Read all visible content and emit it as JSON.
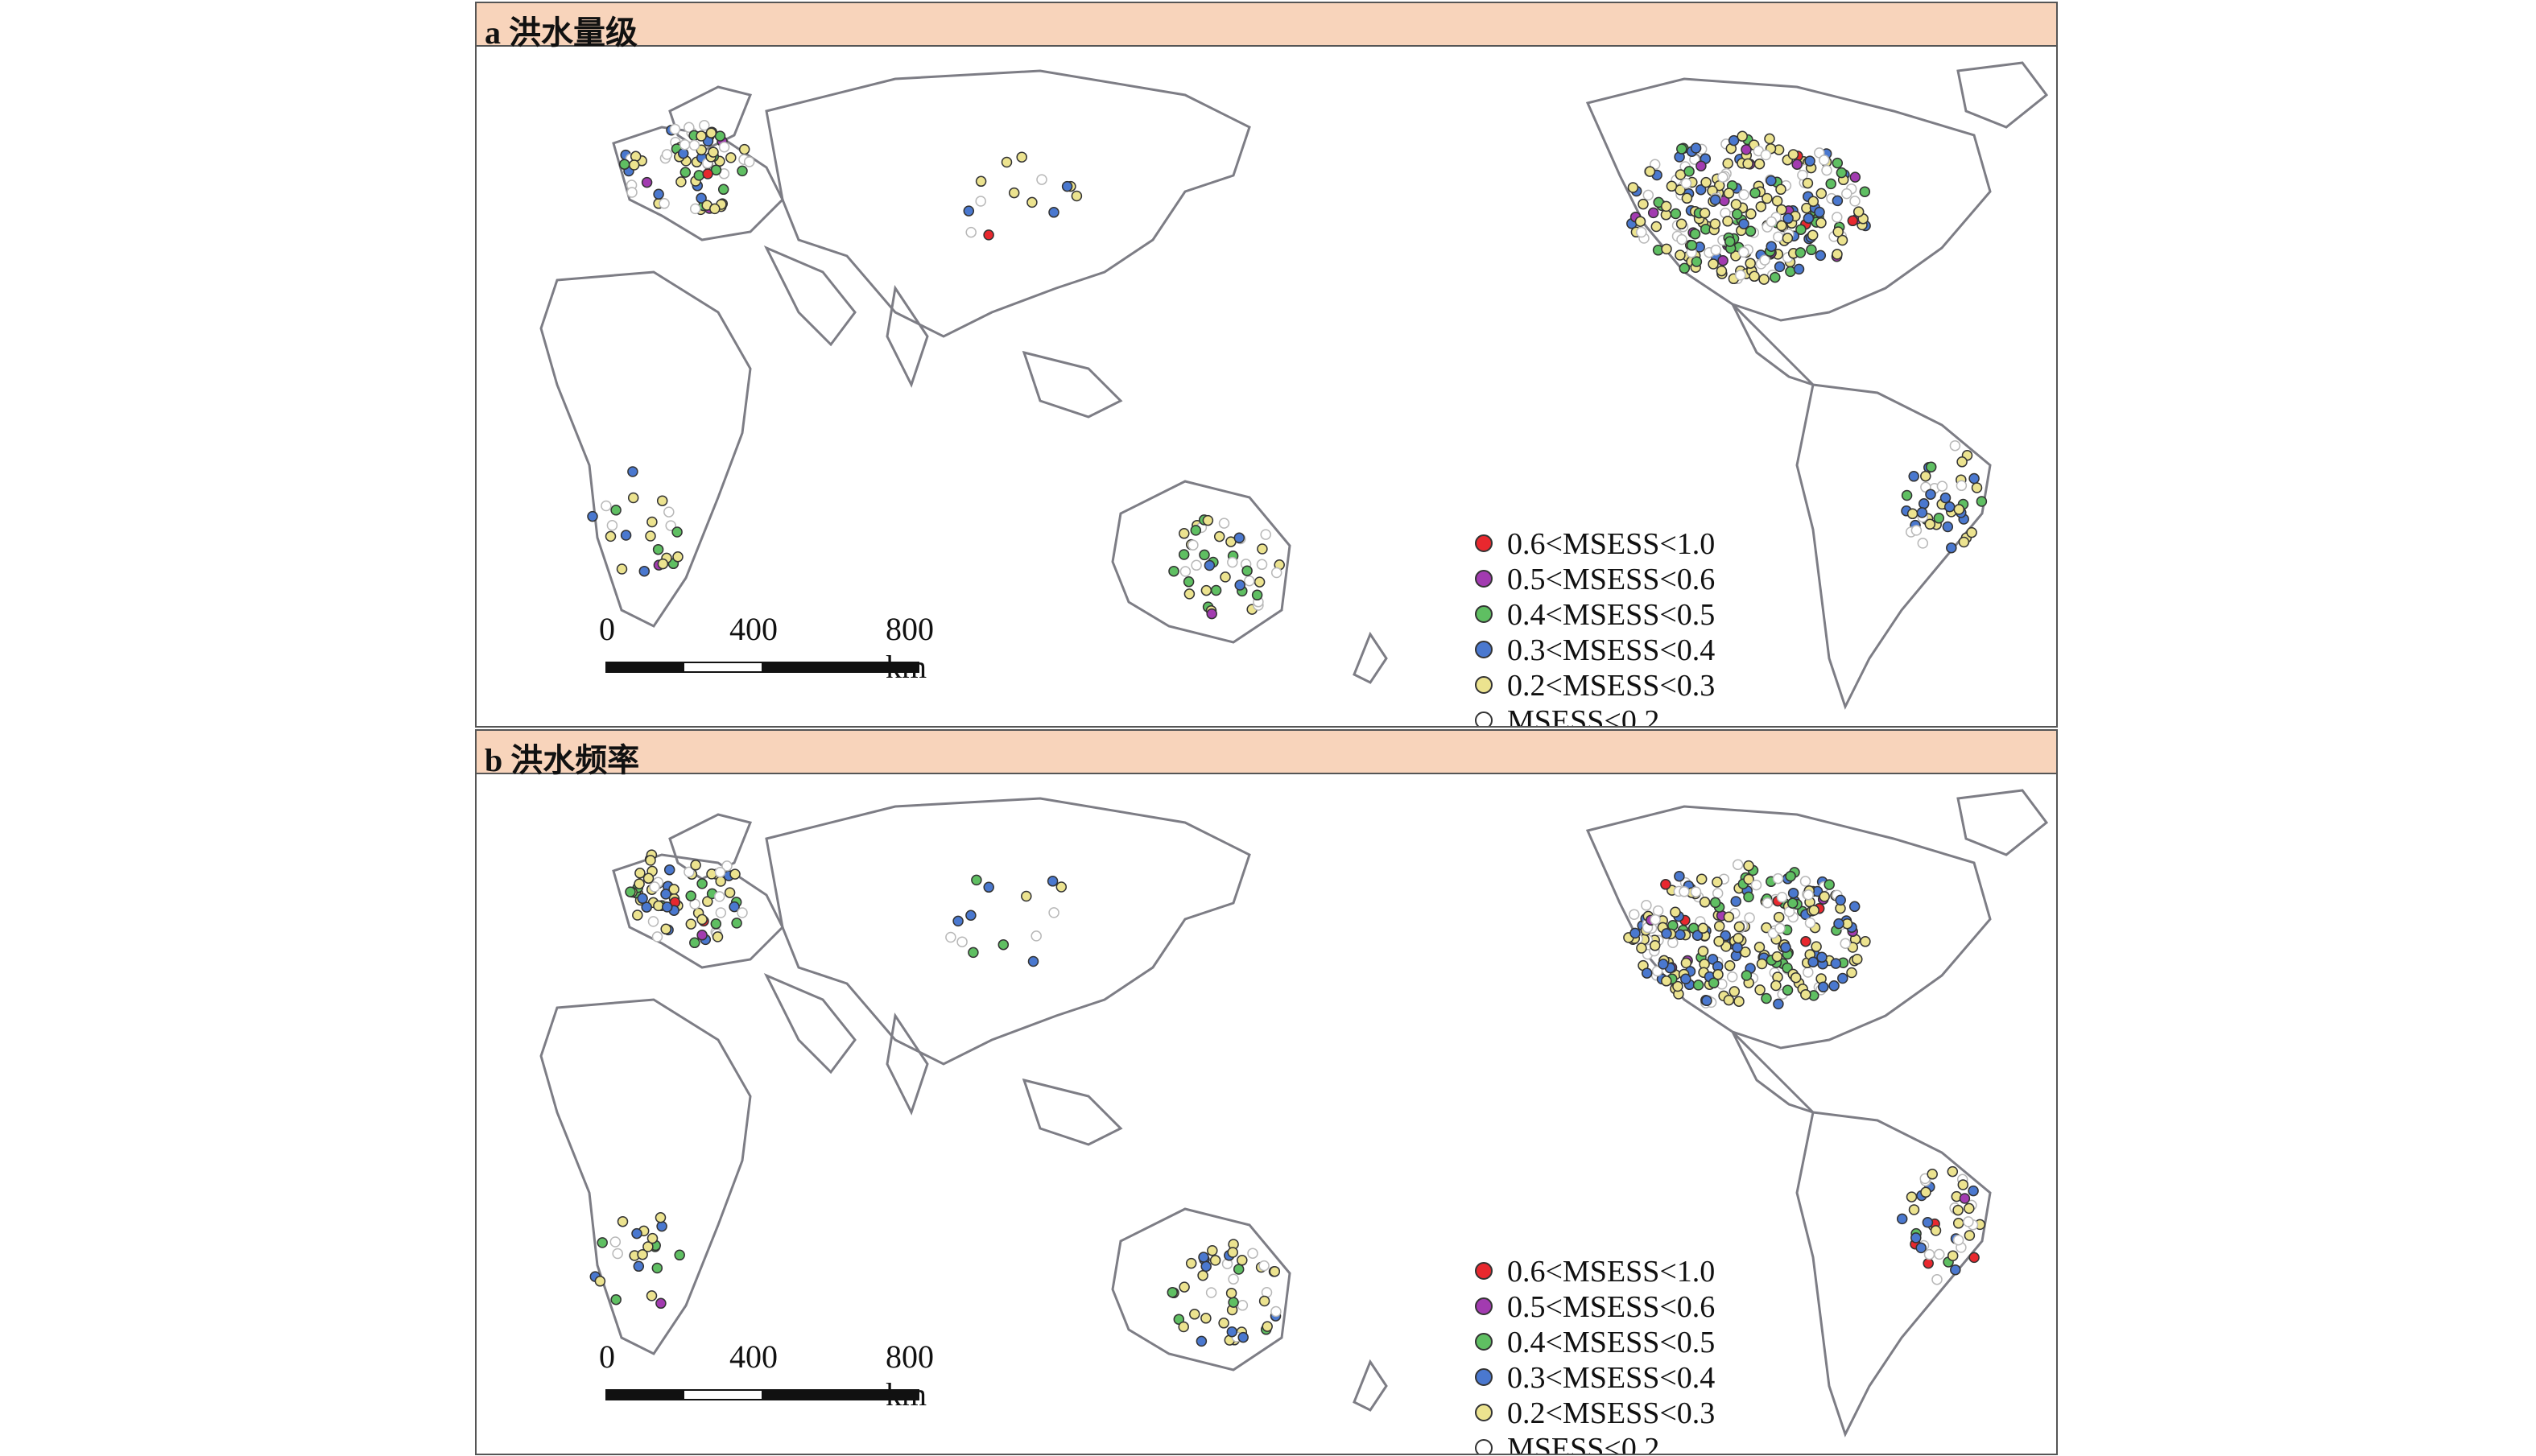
{
  "panels": [
    {
      "id": "a",
      "title": "a 洪水量级",
      "legend": [
        {
          "label": "0.6<MSESS<1.0",
          "color": "#e8282e"
        },
        {
          "label": "0.5<MSESS<0.6",
          "color": "#a23bb0"
        },
        {
          "label": "0.4<MSESS<0.5",
          "color": "#5fbf62"
        },
        {
          "label": "0.3<MSESS<0.4",
          "color": "#4a78cf"
        },
        {
          "label": "0.2<MSESS<0.3",
          "color": "#ece38f"
        },
        {
          "label": "MSESS<0.2",
          "color": "#ffffff"
        }
      ],
      "scalebar": {
        "labels": [
          "0",
          "400",
          "800 km"
        ]
      }
    },
    {
      "id": "b",
      "title": "b 洪水频率",
      "legend": [
        {
          "label": "0.6<MSESS<1.0",
          "color": "#e8282e"
        },
        {
          "label": "0.5<MSESS<0.6",
          "color": "#a23bb0"
        },
        {
          "label": "0.4<MSESS<0.5",
          "color": "#5fbf62"
        },
        {
          "label": "0.3<MSESS<0.4",
          "color": "#4a78cf"
        },
        {
          "label": "0.2<MSESS<0.3",
          "color": "#ece38f"
        },
        {
          "label": "MSESS<0.2",
          "color": "#ffffff"
        }
      ],
      "scalebar": {
        "labels": [
          "0",
          "400",
          "800 km"
        ]
      }
    }
  ],
  "colors": {
    "coastline": "#7d7d85",
    "header_bg": "#f8d4bb",
    "low_skill_dot_stroke": "#b8b8b8"
  }
}
